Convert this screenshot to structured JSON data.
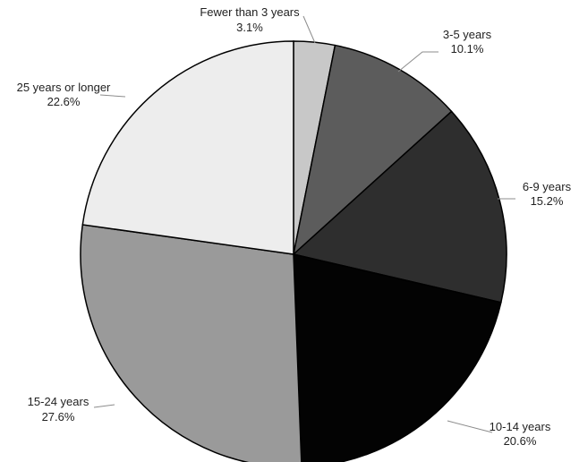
{
  "chart_data": {
    "type": "pie",
    "slices": [
      {
        "label": "Fewer than 3 years",
        "value": 3.1,
        "value_label": "3.1%",
        "color": "#c8c8c8"
      },
      {
        "label": "3-5 years",
        "value": 10.1,
        "value_label": "10.1%",
        "color": "#5c5c5c"
      },
      {
        "label": "6-9 years",
        "value": 15.2,
        "value_label": "15.2%",
        "color": "#2e2e2e"
      },
      {
        "label": "10-14 years",
        "value": 20.6,
        "value_label": "20.6%",
        "color": "#030303"
      },
      {
        "label": "15-24 years",
        "value": 27.6,
        "value_label": "27.6%",
        "color": "#9a9a9a"
      },
      {
        "label": "25 years or longer",
        "value": 22.6,
        "value_label": "22.6%",
        "color": "#ededed"
      }
    ]
  }
}
